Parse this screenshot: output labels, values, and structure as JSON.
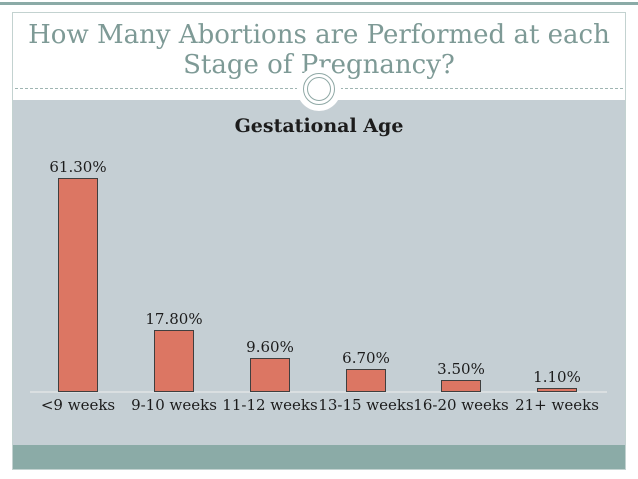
{
  "slide": {
    "title": {
      "line1": "How Many Abortions are Performed at each",
      "line2": "Stage of Pregnancy?"
    }
  },
  "chart_data": {
    "type": "bar",
    "title": "Gestational Age",
    "categories": [
      "<9 weeks",
      "9-10 weeks",
      "11-12 weeks",
      "13-15 weeks",
      "16-20 weeks",
      "21+ weeks"
    ],
    "values": [
      61.3,
      17.8,
      9.6,
      6.7,
      3.5,
      1.1
    ],
    "value_labels": [
      "61.30%",
      "17.80%",
      "9.60%",
      "6.70%",
      "3.50%",
      "1.10%"
    ],
    "xlabel": "",
    "ylabel": "",
    "ylim": [
      0,
      70
    ],
    "grid": false,
    "legend": "none"
  },
  "theme": {
    "colors": {
      "page_bg": "#ffffff",
      "band": "#8babA7",
      "frame_border": "#c3d2d0",
      "title_color": "#7e9a96",
      "divider": "#9fb5b2",
      "ring": "#8fa8a5",
      "body_bg": "#c5cfd4",
      "axis": "#dadfe1",
      "bar_fill": "#dc7663",
      "bar_border": "#3f3f3f",
      "ink": "#1c1c1c"
    }
  }
}
